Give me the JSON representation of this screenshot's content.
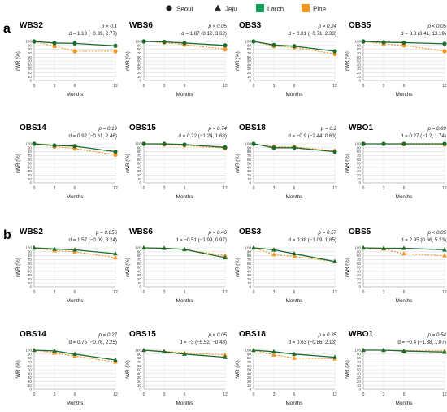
{
  "legend": {
    "items": [
      {
        "label": "Seoul",
        "marker": "circle",
        "color": "#222222"
      },
      {
        "label": "Jeju",
        "marker": "triangle",
        "color": "#222222"
      },
      {
        "label": "Larch",
        "marker": "square",
        "color": "#0f9d58"
      },
      {
        "label": "Pine",
        "marker": "square",
        "color": "#f7941d"
      }
    ]
  },
  "colors": {
    "larch": "#1b6b2f",
    "pine": "#f7941d"
  },
  "panels": [
    {
      "letter": "a",
      "marker": "circle"
    },
    {
      "letter": "b",
      "marker": "triangle"
    }
  ],
  "chart_data": [
    {
      "type": "line",
      "panel": "a",
      "title": "WBS2",
      "p_text": "p = 0.1",
      "d_text": "d = 1.19 (−0.39, 2.77)",
      "x": [
        0,
        3,
        6,
        12
      ],
      "xlabel": "Months",
      "ylabel": "rWR (%)",
      "ylim": [
        0,
        100
      ],
      "yticks": [
        0,
        10,
        20,
        30,
        40,
        50,
        60,
        70,
        80,
        90,
        100
      ],
      "grid": true,
      "series": [
        {
          "name": "Larch",
          "values": [
            100,
            96,
            95,
            89
          ]
        },
        {
          "name": "Pine",
          "values": [
            100,
            88,
            75,
            75
          ]
        }
      ]
    },
    {
      "type": "line",
      "panel": "a",
      "title": "WBS6",
      "p_text": "p < 0.05",
      "d_text": "d = 1.87 (0.12, 3.62)",
      "x": [
        0,
        3,
        6,
        12
      ],
      "xlabel": "Months",
      "ylabel": "rWR (%)",
      "ylim": [
        0,
        100
      ],
      "yticks": [
        0,
        10,
        20,
        30,
        40,
        50,
        60,
        70,
        80,
        90,
        100
      ],
      "grid": true,
      "series": [
        {
          "name": "Larch",
          "values": [
            100,
            99,
            96,
            90
          ]
        },
        {
          "name": "Pine",
          "values": [
            100,
            97,
            92,
            80
          ]
        }
      ]
    },
    {
      "type": "line",
      "panel": "a",
      "title": "OBS3",
      "p_text": "p = 0.24",
      "d_text": "d = 0.81 (−0.71, 2.33)",
      "x": [
        0,
        3,
        6,
        12
      ],
      "xlabel": "Months",
      "ylabel": "rWR (%)",
      "ylim": [
        0,
        100
      ],
      "yticks": [
        0,
        10,
        20,
        30,
        40,
        50,
        60,
        70,
        80,
        90,
        100
      ],
      "grid": true,
      "series": [
        {
          "name": "Larch",
          "values": [
            100,
            91,
            88,
            75
          ]
        },
        {
          "name": "Pine",
          "values": [
            100,
            88,
            85,
            68
          ]
        }
      ]
    },
    {
      "type": "line",
      "panel": "a",
      "title": "OBS5",
      "p_text": "p < 0.05",
      "d_text": "d = 8.3 (3.41, 13.19)",
      "x": [
        0,
        3,
        6,
        12
      ],
      "xlabel": "Months",
      "ylabel": "rWR (%)",
      "ylim": [
        0,
        100
      ],
      "yticks": [
        0,
        10,
        20,
        30,
        40,
        50,
        60,
        70,
        80,
        90,
        100
      ],
      "grid": true,
      "series": [
        {
          "name": "Larch",
          "values": [
            100,
            98,
            97,
            94
          ]
        },
        {
          "name": "Pine",
          "values": [
            100,
            94,
            90,
            75
          ]
        }
      ]
    },
    {
      "type": "line",
      "panel": "a",
      "title": "OBS14",
      "p_text": "p = 0.19",
      "d_text": "d = 0.92 (−0.61, 2.46)",
      "x": [
        0,
        3,
        6,
        12
      ],
      "xlabel": "Months",
      "ylabel": "rWR (%)",
      "ylim": [
        0,
        100
      ],
      "yticks": [
        0,
        10,
        20,
        30,
        40,
        50,
        60,
        70,
        80,
        90,
        100
      ],
      "grid": true,
      "series": [
        {
          "name": "Larch",
          "values": [
            100,
            96,
            94,
            80
          ]
        },
        {
          "name": "Pine",
          "values": [
            100,
            93,
            88,
            72
          ]
        }
      ]
    },
    {
      "type": "line",
      "panel": "a",
      "title": "OBS15",
      "p_text": "p = 0.74",
      "d_text": "d = 0.22 (−1.24, 1.68)",
      "x": [
        0,
        3,
        6,
        12
      ],
      "xlabel": "Months",
      "ylabel": "rWR (%)",
      "ylim": [
        0,
        100
      ],
      "yticks": [
        0,
        10,
        20,
        30,
        40,
        50,
        60,
        70,
        80,
        90,
        100
      ],
      "grid": true,
      "series": [
        {
          "name": "Larch",
          "values": [
            100,
            100,
            98,
            91
          ]
        },
        {
          "name": "Pine",
          "values": [
            100,
            98,
            96,
            89
          ]
        }
      ]
    },
    {
      "type": "line",
      "panel": "a",
      "title": "OBS18",
      "p_text": "p = 0.2",
      "d_text": "d = −0.9 (−2.44, 0.63)",
      "x": [
        0,
        3,
        6,
        12
      ],
      "xlabel": "Months",
      "ylabel": "rWR (%)",
      "ylim": [
        0,
        100
      ],
      "yticks": [
        0,
        10,
        20,
        30,
        40,
        50,
        60,
        70,
        80,
        90,
        100
      ],
      "grid": true,
      "series": [
        {
          "name": "Larch",
          "values": [
            100,
            90,
            90,
            80
          ]
        },
        {
          "name": "Pine",
          "values": [
            100,
            92,
            92,
            82
          ]
        }
      ]
    },
    {
      "type": "line",
      "panel": "a",
      "title": "WBO1",
      "p_text": "p = 0.69",
      "d_text": "d = 0.27 (−1.2, 1.74)",
      "x": [
        0,
        3,
        6,
        12
      ],
      "xlabel": "Months",
      "ylabel": "rWR (%)",
      "ylim": [
        0,
        100
      ],
      "yticks": [
        0,
        10,
        20,
        30,
        40,
        50,
        60,
        70,
        80,
        90,
        100
      ],
      "grid": true,
      "series": [
        {
          "name": "Larch",
          "values": [
            100,
            100,
            100,
            100
          ]
        },
        {
          "name": "Pine",
          "values": [
            100,
            100,
            99,
            98
          ]
        }
      ]
    },
    {
      "type": "line",
      "panel": "b",
      "title": "WBS2",
      "p_text": "p = 0.056",
      "d_text": "d = 1.57 (−0.09, 3.24)",
      "x": [
        0,
        3,
        6,
        12
      ],
      "xlabel": "Months",
      "ylabel": "rWR (%)",
      "ylim": [
        0,
        100
      ],
      "yticks": [
        0,
        10,
        20,
        30,
        40,
        50,
        60,
        70,
        80,
        90,
        100
      ],
      "grid": true,
      "series": [
        {
          "name": "Larch",
          "values": [
            100,
            97,
            95,
            85
          ]
        },
        {
          "name": "Pine",
          "values": [
            100,
            93,
            90,
            75
          ]
        }
      ]
    },
    {
      "type": "line",
      "panel": "b",
      "title": "WBS6",
      "p_text": "p = 0.46",
      "d_text": "d = −0.51 (−1.99, 0.97)",
      "x": [
        0,
        3,
        6,
        12
      ],
      "xlabel": "Months",
      "ylabel": "rWR (%)",
      "ylim": [
        0,
        100
      ],
      "yticks": [
        0,
        10,
        20,
        30,
        40,
        50,
        60,
        70,
        80,
        90,
        100
      ],
      "grid": true,
      "series": [
        {
          "name": "Larch",
          "values": [
            100,
            99,
            96,
            75
          ]
        },
        {
          "name": "Pine",
          "values": [
            100,
            99,
            96,
            80
          ]
        }
      ]
    },
    {
      "type": "line",
      "panel": "b",
      "title": "OBS3",
      "p_text": "p = 0.57",
      "d_text": "d = 0.38 (−1.09, 1.85)",
      "x": [
        0,
        3,
        6,
        12
      ],
      "xlabel": "Months",
      "ylabel": "rWR (%)",
      "ylim": [
        0,
        100
      ],
      "yticks": [
        0,
        10,
        20,
        30,
        40,
        50,
        60,
        70,
        80,
        90,
        100
      ],
      "grid": true,
      "series": [
        {
          "name": "Larch",
          "values": [
            100,
            95,
            85,
            65
          ]
        },
        {
          "name": "Pine",
          "values": [
            100,
            83,
            78,
            65
          ]
        }
      ]
    },
    {
      "type": "line",
      "panel": "b",
      "title": "OBS5",
      "p_text": "p < 0.05",
      "d_text": "d = 2.95 (0.66, 5.23)",
      "x": [
        0,
        3,
        6,
        12
      ],
      "xlabel": "Months",
      "ylabel": "rWR (%)",
      "ylim": [
        0,
        100
      ],
      "yticks": [
        0,
        10,
        20,
        30,
        40,
        50,
        60,
        70,
        80,
        90,
        100
      ],
      "grid": true,
      "series": [
        {
          "name": "Larch",
          "values": [
            100,
            99,
            99,
            95
          ]
        },
        {
          "name": "Pine",
          "values": [
            100,
            97,
            85,
            80
          ]
        }
      ]
    },
    {
      "type": "line",
      "panel": "b",
      "title": "OBS14",
      "p_text": "p = 0.27",
      "d_text": "d = 0.75 (−0.76, 2.25)",
      "x": [
        0,
        3,
        6,
        12
      ],
      "xlabel": "Months",
      "ylabel": "rWR (%)",
      "ylim": [
        0,
        100
      ],
      "yticks": [
        0,
        10,
        20,
        30,
        40,
        50,
        60,
        70,
        80,
        90,
        100
      ],
      "grid": true,
      "series": [
        {
          "name": "Larch",
          "values": [
            100,
            98,
            90,
            75
          ]
        },
        {
          "name": "Pine",
          "values": [
            100,
            93,
            85,
            70
          ]
        }
      ]
    },
    {
      "type": "line",
      "panel": "b",
      "title": "OBS15",
      "p_text": "p < 0.05",
      "d_text": "d = −3 (−5.52, −0.48)",
      "x": [
        0,
        3,
        6,
        12
      ],
      "xlabel": "Months",
      "ylabel": "rWR (%)",
      "ylim": [
        0,
        100
      ],
      "yticks": [
        0,
        10,
        20,
        30,
        40,
        50,
        60,
        70,
        80,
        90,
        100
      ],
      "grid": true,
      "series": [
        {
          "name": "Larch",
          "values": [
            100,
            96,
            90,
            82
          ]
        },
        {
          "name": "Pine",
          "values": [
            100,
            97,
            93,
            88
          ]
        }
      ]
    },
    {
      "type": "line",
      "panel": "b",
      "title": "OBS18",
      "p_text": "p = 0.35",
      "d_text": "d = 0.63 (−0.86, 2.13)",
      "x": [
        0,
        3,
        6,
        12
      ],
      "xlabel": "Months",
      "ylabel": "rWR (%)",
      "ylim": [
        0,
        100
      ],
      "yticks": [
        0,
        10,
        20,
        30,
        40,
        50,
        60,
        70,
        80,
        90,
        100
      ],
      "grid": true,
      "series": [
        {
          "name": "Larch",
          "values": [
            100,
            96,
            90,
            82
          ]
        },
        {
          "name": "Pine",
          "values": [
            100,
            88,
            80,
            78
          ]
        }
      ]
    },
    {
      "type": "line",
      "panel": "b",
      "title": "WBO1",
      "p_text": "p = 0.54",
      "d_text": "d = −0.4 (−1.88, 1.07)",
      "x": [
        0,
        3,
        6,
        12
      ],
      "xlabel": "Months",
      "ylabel": "rWR (%)",
      "ylim": [
        0,
        100
      ],
      "yticks": [
        0,
        10,
        20,
        30,
        40,
        50,
        60,
        70,
        80,
        90,
        100
      ],
      "grid": true,
      "series": [
        {
          "name": "Larch",
          "values": [
            100,
            100,
            98,
            95
          ]
        },
        {
          "name": "Pine",
          "values": [
            100,
            100,
            99,
            98
          ]
        }
      ]
    }
  ]
}
